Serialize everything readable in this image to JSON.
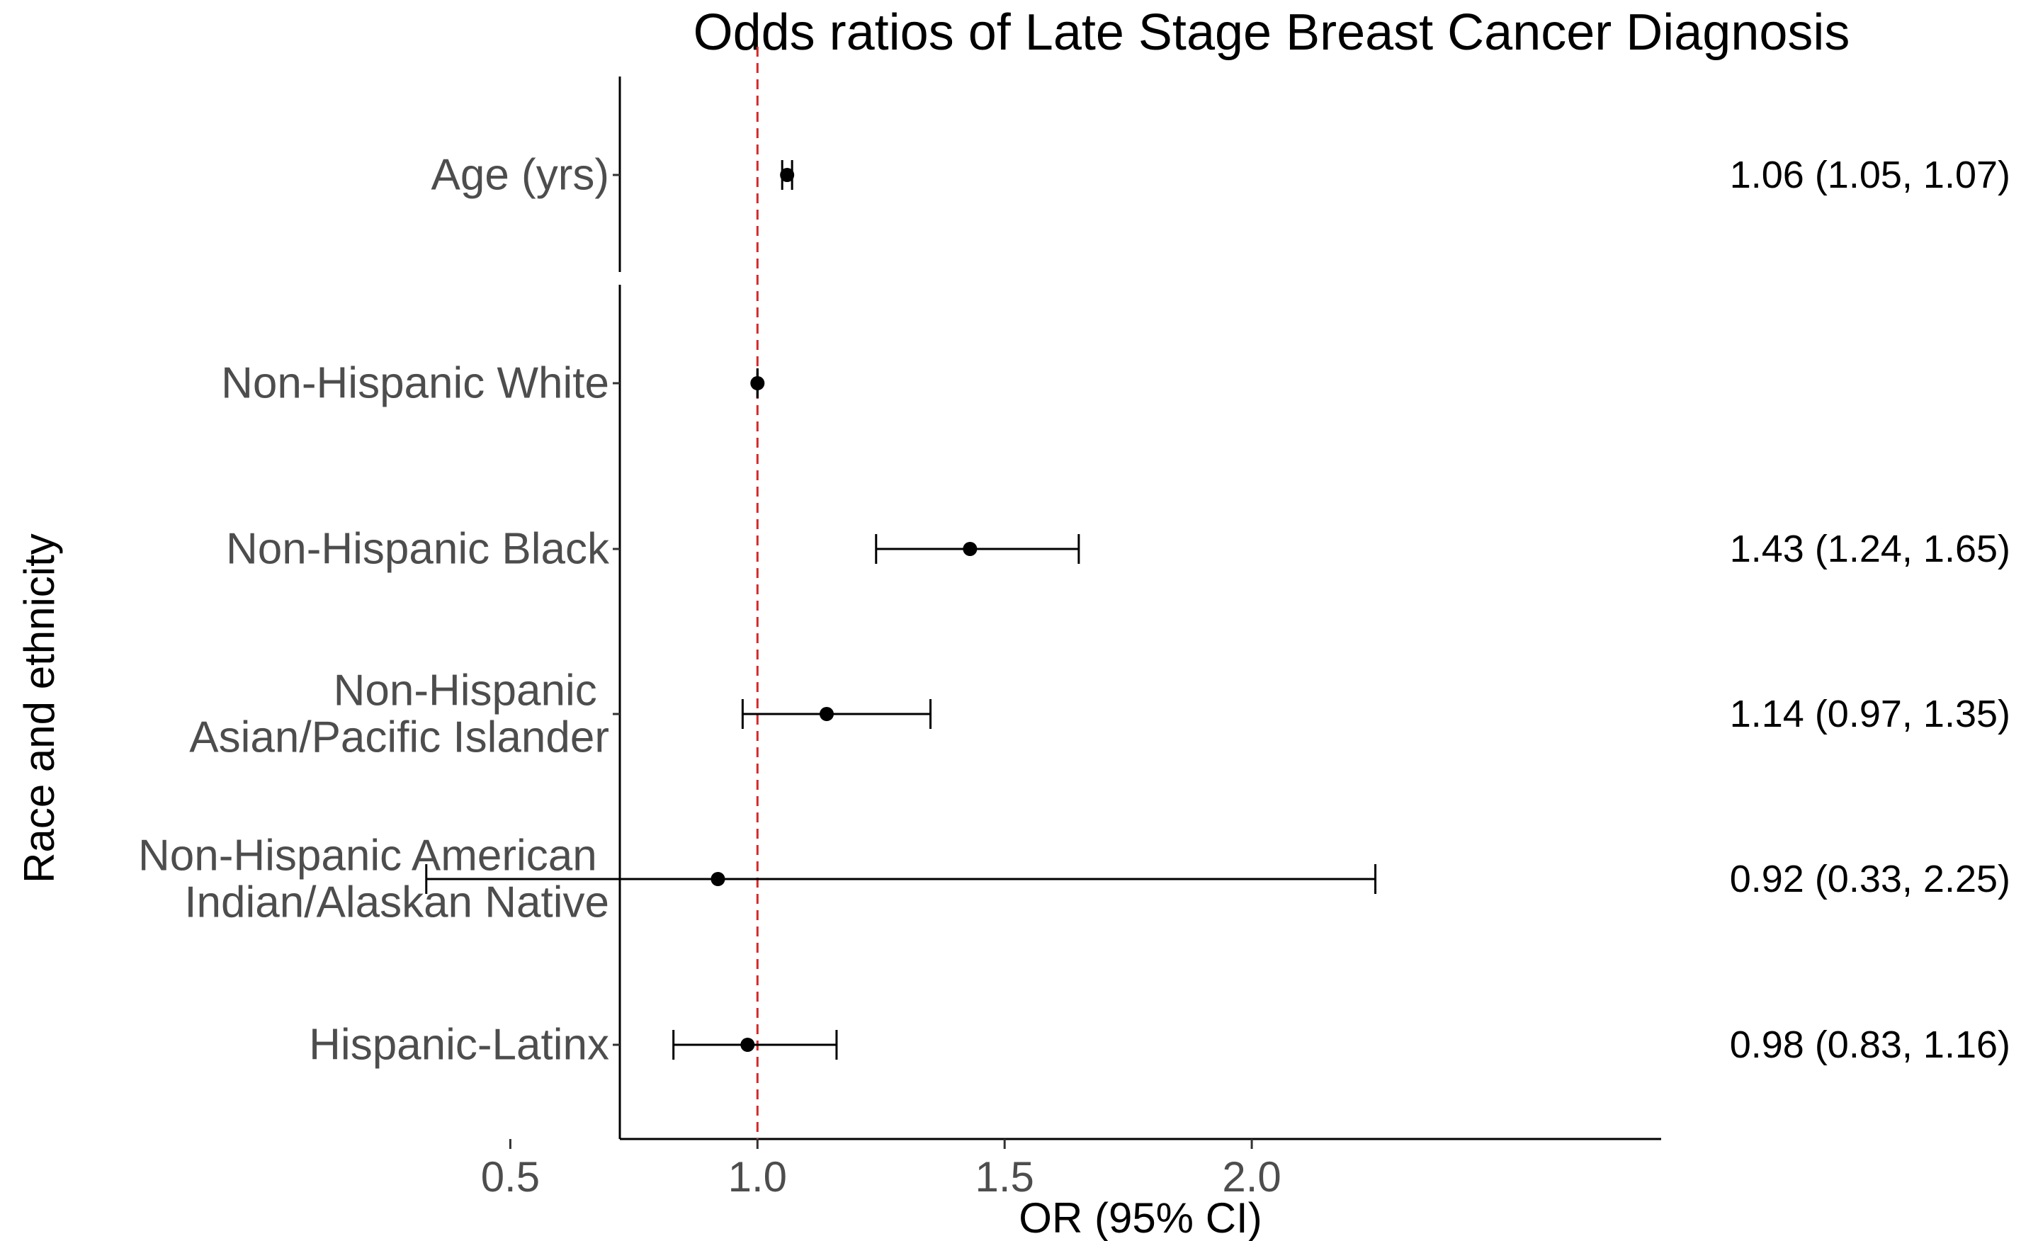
{
  "chart_data": {
    "type": "scatter",
    "title": "Odds ratios of Late Stage Breast Cancer Diagnosis",
    "xlabel": "OR (95% CI)",
    "ylabel": "Race and ethnicity",
    "xlim": [
      0.23,
      2.34
    ],
    "xticks": [
      0.5,
      1.0,
      1.5,
      2.0
    ],
    "xtick_labels": [
      "0.5",
      "1.0",
      "1.5",
      "2.0"
    ],
    "reference_line": 1.0,
    "reference_line_color": "#d62728",
    "point_color": "#000000",
    "grid": false,
    "panels": [
      {
        "name": "",
        "rows": [
          {
            "label_lines": [
              "Age (yrs)"
            ],
            "or": 1.06,
            "lower": 1.05,
            "upper": 1.07,
            "annotation": "1.06 (1.05, 1.07)"
          }
        ]
      },
      {
        "name": "Race and ethnicity",
        "rows": [
          {
            "label_lines": [
              "Non-Hispanic White"
            ],
            "or": 1.0,
            "lower": 1.0,
            "upper": 1.0,
            "annotation": ""
          },
          {
            "label_lines": [
              "Non-Hispanic Black"
            ],
            "or": 1.43,
            "lower": 1.24,
            "upper": 1.65,
            "annotation": "1.43 (1.24, 1.65)"
          },
          {
            "label_lines": [
              "Non-Hispanic ",
              "Asian/Pacific Islander"
            ],
            "or": 1.14,
            "lower": 0.97,
            "upper": 1.35,
            "annotation": "1.14 (0.97, 1.35)"
          },
          {
            "label_lines": [
              "Non-Hispanic American ",
              "Indian/Alaskan Native"
            ],
            "or": 0.92,
            "lower": 0.33,
            "upper": 2.25,
            "annotation": "0.92 (0.33, 2.25)"
          },
          {
            "label_lines": [
              "Hispanic-Latinx"
            ],
            "or": 0.98,
            "lower": 0.83,
            "upper": 1.16,
            "annotation": "0.98 (0.83, 1.16)"
          }
        ]
      }
    ]
  }
}
